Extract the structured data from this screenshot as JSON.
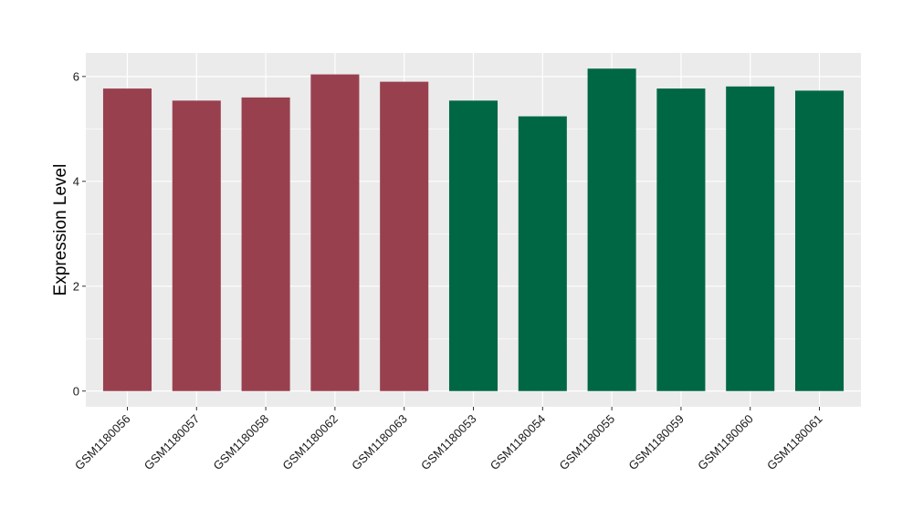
{
  "chart_data": {
    "type": "bar",
    "title": "",
    "xlabel": "",
    "ylabel": "Expression Level",
    "categories": [
      "GSM1180056",
      "GSM1180057",
      "GSM1180058",
      "GSM1180062",
      "GSM1180063",
      "GSM1180053",
      "GSM1180054",
      "GSM1180055",
      "GSM1180059",
      "GSM1180060",
      "GSM1180061"
    ],
    "values": [
      5.77,
      5.54,
      5.6,
      6.04,
      5.9,
      5.54,
      5.24,
      6.15,
      5.77,
      5.81,
      5.73
    ],
    "bar_colors": [
      "#99404f",
      "#99404f",
      "#99404f",
      "#99404f",
      "#99404f",
      "#006745",
      "#006745",
      "#006745",
      "#006745",
      "#006745",
      "#006745"
    ],
    "yticks": [
      0,
      2,
      4,
      6
    ],
    "ytick_labels": [
      "0",
      "2",
      "4",
      "6"
    ],
    "ylim": [
      -0.3,
      6.45
    ],
    "grid": true,
    "legend": "none",
    "panel_background": "#ebebeb",
    "gridline_color": "#ffffff"
  }
}
